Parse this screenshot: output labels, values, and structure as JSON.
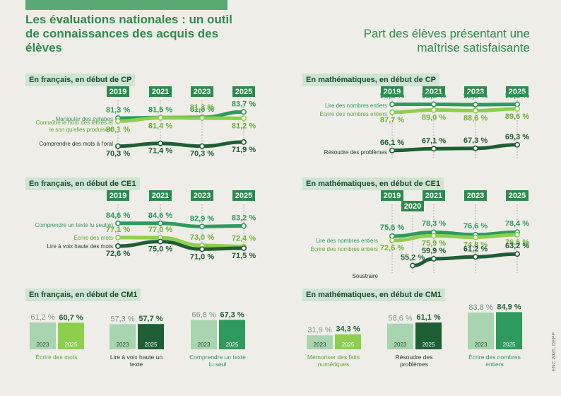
{
  "header": {
    "title": "Les évaluations nationales : un outil de connaissances des acquis des élèves",
    "subtitle": "Part des élèves présentant une maîtrise satisfaisante",
    "credit": "ENC 2026, DEPP"
  },
  "colors": {
    "dark": "#1e5e35",
    "mid": "#2e9a5e",
    "light": "#8ccf4c",
    "pale": "#a9d4b0",
    "yearbox": "#2e8a4c"
  },
  "chart_data": [
    {
      "type": "line",
      "title": "En français, en début de CP",
      "x": [
        "2019",
        "2021",
        "2023",
        "2025"
      ],
      "series": [
        {
          "name": "Manipuler des syllabes",
          "values": [
            81.3,
            81.5,
            81.6,
            83.7
          ]
        },
        {
          "name": "Connaître le nom des lettres et le son qu'elles produisent",
          "values": [
            80.1,
            81.4,
            81.3,
            81.2
          ]
        },
        {
          "name": "Comprendre des mots à l'oral",
          "values": [
            70.3,
            71.4,
            70.3,
            71.9
          ]
        }
      ]
    },
    {
      "type": "line",
      "title": "En mathématiques, en début de CP",
      "x": [
        "2019",
        "2021",
        "2023",
        "2025"
      ],
      "series": [
        {
          "name": "Lire des nombres entiers",
          "values": [
            92.2,
            92.2,
            92.0,
            92.2
          ]
        },
        {
          "name": "Écrire des nombres entiers",
          "values": [
            87.7,
            89.0,
            88.6,
            89.6
          ]
        },
        {
          "name": "Résoudre des problèmes",
          "values": [
            66.1,
            67.1,
            67.3,
            69.3
          ]
        }
      ]
    },
    {
      "type": "line",
      "title": "En français, en début de CE1",
      "x": [
        "2019",
        "2021",
        "2023",
        "2025"
      ],
      "series": [
        {
          "name": "Comprendre un texte lu seul(e)",
          "values": [
            84.6,
            84.6,
            82.9,
            83.2
          ]
        },
        {
          "name": "Écrire des mots",
          "values": [
            77.1,
            77.0,
            73.0,
            72.4
          ]
        },
        {
          "name": "Lire à voix haute des mots",
          "values": [
            72.6,
            75.0,
            71.0,
            71.5
          ]
        }
      ]
    },
    {
      "type": "line",
      "title": "En mathématiques, en début de CE1",
      "x": [
        "2019",
        "2020",
        "2021",
        "2023",
        "2025"
      ],
      "series": [
        {
          "name": "Lire des nombres entiers",
          "values": [
            75.6,
            null,
            78.3,
            76.6,
            78.4
          ]
        },
        {
          "name": "Écrire des nombres entiers",
          "values": [
            72.6,
            null,
            75.9,
            74.8,
            76.6
          ]
        },
        {
          "name": "Soustraire",
          "values": [
            null,
            55.2,
            59.9,
            61.2,
            63.2
          ]
        }
      ]
    },
    {
      "type": "bar",
      "title": "En français, en début de CM1",
      "groups": [
        {
          "label": "Écrire des mots",
          "values": [
            61.2,
            60.7
          ]
        },
        {
          "label": "Lire à voix haute un texte",
          "values": [
            57.3,
            57.7
          ]
        },
        {
          "label": "Comprendre un texte lu seul",
          "values": [
            66.8,
            67.3
          ]
        }
      ],
      "categories": [
        "2023",
        "2025"
      ]
    },
    {
      "type": "bar",
      "title": "En mathématiques, en début de CM1",
      "groups": [
        {
          "label": "Mémoriser des faits numériques",
          "values": [
            31.9,
            34.3
          ]
        },
        {
          "label": "Résoudre des problèmes",
          "values": [
            58.6,
            61.1
          ]
        },
        {
          "label": "Écrire des nombres entiers",
          "values": [
            83.8,
            84.9
          ]
        }
      ],
      "categories": [
        "2023",
        "2025"
      ]
    }
  ]
}
